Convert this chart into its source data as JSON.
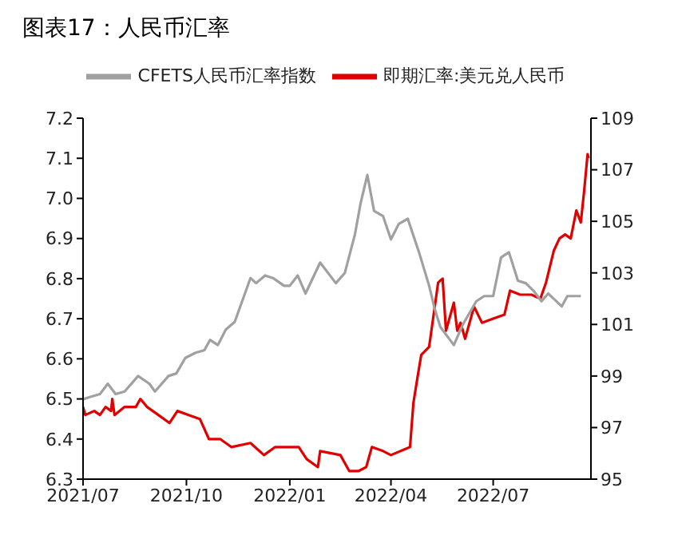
{
  "chart_data": {
    "type": "line",
    "title": "图表17：人民币汇率",
    "legend": "top",
    "grid": false,
    "marker": "none",
    "line_style": "solid",
    "xlim": [
      "2021-07-01",
      "2022-09-26"
    ],
    "xticks": [
      {
        "value": "2021-07-01",
        "label": "2021/07"
      },
      {
        "value": "2021-10-01",
        "label": "2021/10"
      },
      {
        "value": "2022-01-01",
        "label": "2022/01"
      },
      {
        "value": "2022-04-01",
        "label": "2022/04"
      },
      {
        "value": "2022-07-01",
        "label": "2022/07"
      }
    ],
    "ylim": [
      6.3,
      7.2
    ],
    "yticks": [
      {
        "value": 6.3,
        "label": "6.3"
      },
      {
        "value": 6.4,
        "label": "6.4"
      },
      {
        "value": 6.5,
        "label": "6.5"
      },
      {
        "value": 6.6,
        "label": "6.6"
      },
      {
        "value": 6.7,
        "label": "6.7"
      },
      {
        "value": 6.8,
        "label": "6.8"
      },
      {
        "value": 6.9,
        "label": "6.9"
      },
      {
        "value": 7.0,
        "label": "7.0"
      },
      {
        "value": 7.1,
        "label": "7.1"
      },
      {
        "value": 7.2,
        "label": "7.2"
      }
    ],
    "y2lim": [
      95,
      109
    ],
    "y2ticks": [
      95,
      97,
      99,
      101,
      103,
      105,
      107,
      109
    ],
    "series": [
      {
        "name": "即期汇率:美元兑人民币",
        "color": "#e00000",
        "x": [
          "2021-07-01",
          "2021-07-03",
          "2021-07-11",
          "2021-07-16",
          "2021-07-21",
          "2021-07-26",
          "2021-07-27",
          "2021-07-29",
          "2021-08-07",
          "2021-08-17",
          "2021-08-21",
          "2021-08-27",
          "2021-09-06",
          "2021-09-16",
          "2021-09-23",
          "2021-10-03",
          "2021-10-13",
          "2021-10-21",
          "2021-10-31",
          "2021-11-10",
          "2021-11-27",
          "2021-12-09",
          "2021-12-19",
          "2022-01-09",
          "2022-01-16",
          "2022-01-26",
          "2022-01-28",
          "2022-02-15",
          "2022-02-23",
          "2022-03-03",
          "2022-03-10",
          "2022-03-15",
          "2022-03-25",
          "2022-04-01",
          "2022-04-18",
          "2022-04-21",
          "2022-04-25",
          "2022-04-28",
          "2022-05-05",
          "2022-05-08",
          "2022-05-13",
          "2022-05-17",
          "2022-05-20",
          "2022-05-27",
          "2022-05-30",
          "2022-06-02",
          "2022-06-06",
          "2022-06-14",
          "2022-06-21",
          "2022-07-01",
          "2022-07-11",
          "2022-07-16",
          "2022-07-25",
          "2022-08-04",
          "2022-08-12",
          "2022-08-17",
          "2022-08-24",
          "2022-08-29",
          "2022-09-03",
          "2022-09-08",
          "2022-09-13",
          "2022-09-17",
          "2022-09-20",
          "2022-09-23",
          "2022-09-24"
        ],
        "values": [
          6.48,
          6.46,
          6.47,
          6.46,
          6.48,
          6.47,
          6.5,
          6.46,
          6.48,
          6.48,
          6.5,
          6.48,
          6.46,
          6.44,
          6.47,
          6.46,
          6.45,
          6.4,
          6.4,
          6.38,
          6.39,
          6.36,
          6.38,
          6.38,
          6.35,
          6.33,
          6.37,
          6.36,
          6.32,
          6.32,
          6.33,
          6.38,
          6.37,
          6.36,
          6.38,
          6.49,
          6.56,
          6.61,
          6.63,
          6.69,
          6.79,
          6.8,
          6.67,
          6.74,
          6.67,
          6.69,
          6.65,
          6.73,
          6.69,
          6.7,
          6.71,
          6.77,
          6.76,
          6.76,
          6.75,
          6.79,
          6.87,
          6.9,
          6.91,
          6.9,
          6.97,
          6.94,
          7.02,
          7.11,
          7.1
        ]
      },
      {
        "name": "CFETS人民币汇率指数",
        "color": "#a0a0a0",
        "axis": "y2",
        "x": [
          "2021-07-01",
          "2021-07-08",
          "2021-07-16",
          "2021-07-23",
          "2021-07-30",
          "2021-08-07",
          "2021-08-19",
          "2021-08-29",
          "2021-09-03",
          "2021-09-15",
          "2021-09-22",
          "2021-09-30",
          "2021-10-09",
          "2021-10-17",
          "2021-10-22",
          "2021-10-29",
          "2021-11-05",
          "2021-11-13",
          "2021-11-27",
          "2021-12-02",
          "2021-12-10",
          "2021-12-17",
          "2021-12-27",
          "2022-01-01",
          "2022-01-08",
          "2022-01-15",
          "2022-01-28",
          "2022-02-11",
          "2022-02-19",
          "2022-02-28",
          "2022-03-05",
          "2022-03-11",
          "2022-03-17",
          "2022-03-25",
          "2022-04-01",
          "2022-04-08",
          "2022-04-16",
          "2022-04-26",
          "2022-05-05",
          "2022-05-10",
          "2022-05-15",
          "2022-05-27",
          "2022-06-04",
          "2022-06-16",
          "2022-06-23",
          "2022-07-01",
          "2022-07-08",
          "2022-07-15",
          "2022-07-23",
          "2022-07-30",
          "2022-08-06",
          "2022-08-13",
          "2022-08-19",
          "2022-08-31",
          "2022-09-05",
          "2022-09-17"
        ],
        "values": [
          98.1,
          98.2,
          98.3,
          98.7,
          98.3,
          98.4,
          99.0,
          98.7,
          98.4,
          99.0,
          99.1,
          99.7,
          99.9,
          100.0,
          100.4,
          100.2,
          100.8,
          101.1,
          102.8,
          102.6,
          102.9,
          102.8,
          102.5,
          102.5,
          102.9,
          102.2,
          103.4,
          102.6,
          103.0,
          104.5,
          105.7,
          106.8,
          105.4,
          105.2,
          104.3,
          104.9,
          105.1,
          103.8,
          102.5,
          101.6,
          100.9,
          100.2,
          101.0,
          101.9,
          102.1,
          102.1,
          103.6,
          103.8,
          102.7,
          102.6,
          102.3,
          101.9,
          102.2,
          101.7,
          102.1,
          102.1
        ]
      }
    ]
  }
}
